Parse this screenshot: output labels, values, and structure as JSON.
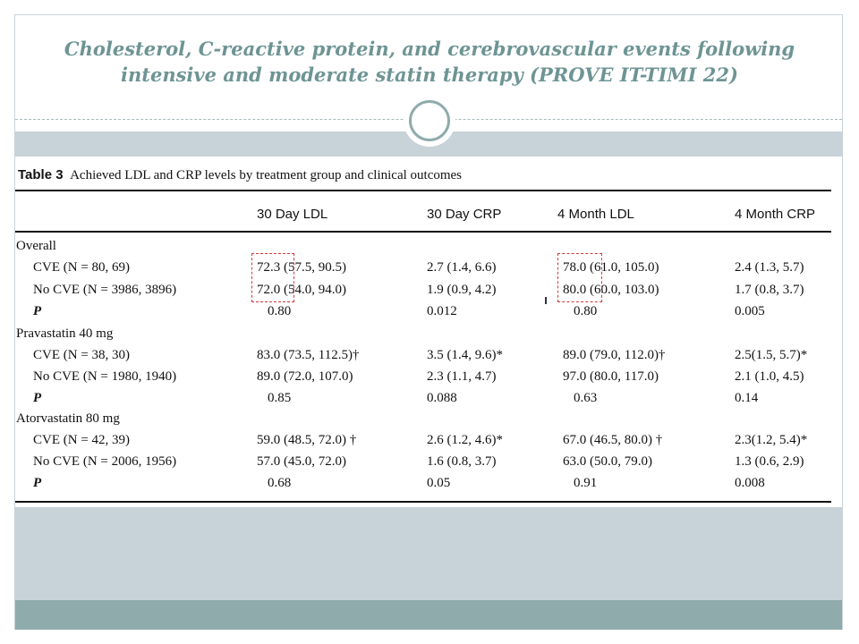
{
  "slide": {
    "title": "Cholesterol, C-reactive protein, and cerebrovascular events following intensive and moderate statin therapy (PROVE IT-TIMI 22)"
  },
  "table": {
    "caption_label": "Table 3",
    "caption_text": "Achieved LDL and CRP levels by treatment group and clinical outcomes",
    "columns": [
      "30 Day LDL",
      "30 Day CRP",
      "4 Month LDL",
      "4 Month CRP"
    ],
    "groups": [
      {
        "name": "Overall",
        "rows": [
          {
            "label": "CVE (N = 80, 69)",
            "values": [
              "72.3 (57.5, 90.5)",
              "2.7 (1.4, 6.6)",
              "78.0 (61.0, 105.0)",
              "2.4 (1.3, 5.7)"
            ]
          },
          {
            "label": "No CVE (N = 3986, 3896)",
            "values": [
              "72.0 (54.0, 94.0)",
              "1.9 (0.9, 4.2)",
              "80.0 (60.0, 103.0)",
              "1.7 (0.8, 3.7)"
            ]
          },
          {
            "label": "P",
            "values": [
              "0.80",
              "0.012",
              "0.80",
              "0.005"
            ]
          }
        ]
      },
      {
        "name": "Pravastatin 40 mg",
        "rows": [
          {
            "label": "CVE (N = 38, 30)",
            "values": [
              "83.0 (73.5, 112.5)†",
              "3.5 (1.4, 9.6)*",
              "89.0 (79.0, 112.0)†",
              "2.5(1.5, 5.7)*"
            ]
          },
          {
            "label": "No CVE (N = 1980, 1940)",
            "values": [
              "89.0 (72.0, 107.0)",
              "2.3 (1.1, 4.7)",
              "97.0 (80.0, 117.0)",
              "2.1 (1.0, 4.5)"
            ]
          },
          {
            "label": "P",
            "values": [
              "0.85",
              "0.088",
              "0.63",
              "0.14"
            ]
          }
        ]
      },
      {
        "name": "Atorvastatin 80 mg",
        "rows": [
          {
            "label": "CVE (N = 42, 39)",
            "values": [
              "59.0 (48.5, 72.0) †",
              "2.6 (1.2, 4.6)*",
              "67.0 (46.5, 80.0) †",
              "2.3(1.2, 5.4)*"
            ]
          },
          {
            "label": "No CVE (N = 2006, 1956)",
            "values": [
              "57.0 (45.0, 72.0)",
              "1.6 (0.8, 3.7)",
              "63.0 (50.0, 79.0)",
              "1.3 (0.6, 2.9)"
            ]
          },
          {
            "label": "P",
            "values": [
              "0.68",
              "0.05",
              "0.91",
              "0.008"
            ]
          }
        ]
      }
    ]
  },
  "colors": {
    "title": "#6e9494",
    "band": "#c8d3d9",
    "bottom_bar": "#8fabab",
    "highlight_box": "#d23a3a"
  }
}
